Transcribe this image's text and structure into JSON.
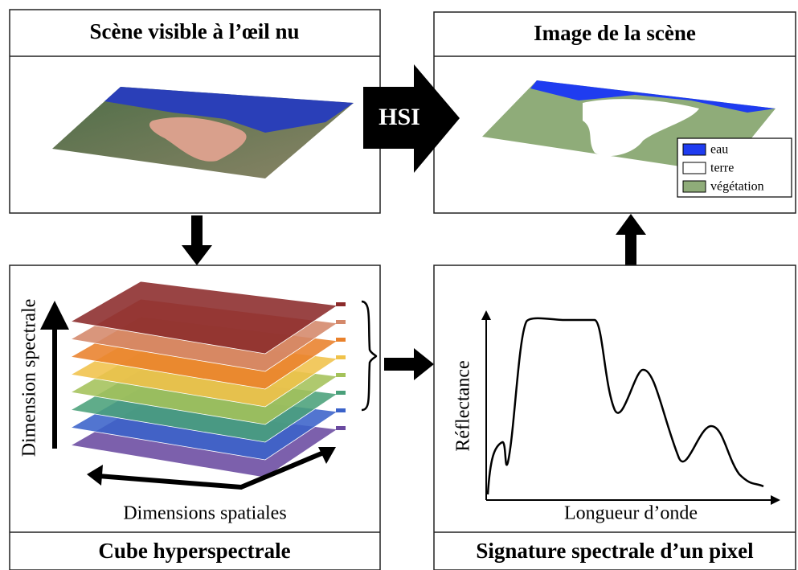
{
  "panels": {
    "visible": {
      "title": "Scène visible à l’œil nu"
    },
    "image": {
      "title": "Image de la scène",
      "legend": [
        "eau",
        "terre",
        "végétation"
      ]
    },
    "cube": {
      "title": "Cube hyperspectrale",
      "axis_spectral": "Dimension spectrale",
      "axis_spatial": "Dimensions spatiales"
    },
    "signature": {
      "title": "Signature spectrale d’un pixel",
      "y_label": "Réflectance",
      "x_label": "Longueur d’onde"
    }
  },
  "arrow_label": "HSI"
}
